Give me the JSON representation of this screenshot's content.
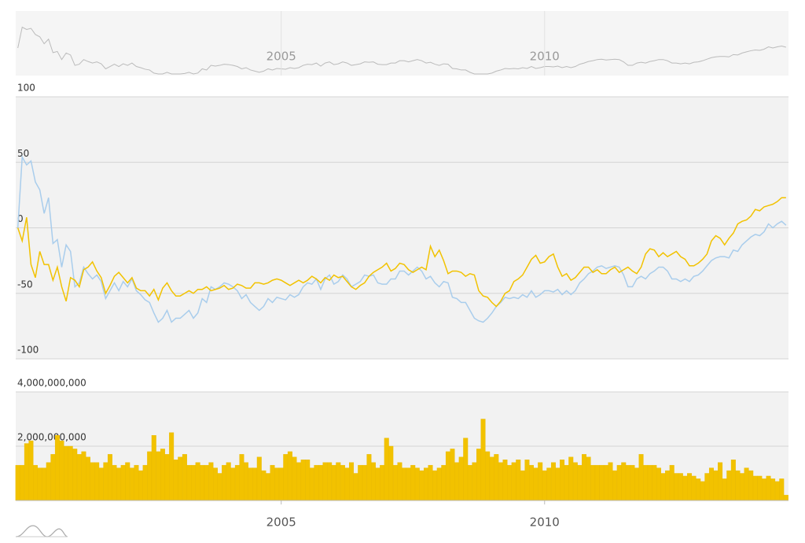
{
  "chart_data": [
    {
      "type": "line",
      "x": [
        2000,
        2000.083,
        2000.167,
        2000.25,
        2000.333,
        2000.417,
        2000.5,
        2000.583,
        2000.667,
        2000.75,
        2000.833,
        2000.917,
        2001,
        2001.083,
        2001.167,
        2001.25,
        2001.333,
        2001.417,
        2001.5,
        2001.583,
        2001.667,
        2001.75,
        2001.833,
        2001.917,
        2002,
        2002.083,
        2002.167,
        2002.25,
        2002.333,
        2002.417,
        2002.5,
        2002.583,
        2002.667,
        2002.75,
        2002.833,
        2002.917,
        2003,
        2003.083,
        2003.167,
        2003.25,
        2003.333,
        2003.417,
        2003.5,
        2003.583,
        2003.667,
        2003.75,
        2003.833,
        2003.917,
        2004,
        2004.083,
        2004.167,
        2004.25,
        2004.333,
        2004.417,
        2004.5,
        2004.583,
        2004.667,
        2004.75,
        2004.833,
        2004.917,
        2005,
        2005.083,
        2005.167,
        2005.25,
        2005.333,
        2005.417,
        2005.5,
        2005.583,
        2005.667,
        2005.75,
        2005.833,
        2005.917,
        2006,
        2006.083,
        2006.167,
        2006.25,
        2006.333,
        2006.417,
        2006.5,
        2006.583,
        2006.667,
        2006.75,
        2006.833,
        2006.917,
        2007,
        2007.083,
        2007.167,
        2007.25,
        2007.333,
        2007.417,
        2007.5,
        2007.583,
        2007.667,
        2007.75,
        2007.833,
        2007.917,
        2008,
        2008.083,
        2008.167,
        2008.25,
        2008.333,
        2008.417,
        2008.5,
        2008.583,
        2008.667,
        2008.75,
        2008.833,
        2008.917,
        2009,
        2009.083,
        2009.167,
        2009.25,
        2009.333,
        2009.417,
        2009.5,
        2009.583,
        2009.667,
        2009.75,
        2009.833,
        2009.917,
        2010,
        2010.083,
        2010.167,
        2010.25,
        2010.333,
        2010.417,
        2010.5,
        2010.583,
        2010.667,
        2010.75,
        2010.833,
        2010.917,
        2011,
        2011.083,
        2011.167,
        2011.25,
        2011.333,
        2011.417,
        2011.5,
        2011.583,
        2011.667,
        2011.75,
        2011.833,
        2011.917,
        2012,
        2012.083,
        2012.167,
        2012.25,
        2012.333,
        2012.417,
        2012.5,
        2012.583,
        2012.667,
        2012.75,
        2012.833,
        2012.917,
        2013,
        2013.083,
        2013.167,
        2013.25,
        2013.333,
        2013.417,
        2013.5,
        2013.583,
        2013.667,
        2013.75,
        2013.833,
        2013.917,
        2014,
        2014.083,
        2014.167,
        2014.25,
        2014.333,
        2014.417,
        2014.5,
        2014.583
      ],
      "series": [
        {
          "color": "#a9cdec",
          "values": [
            0,
            54,
            48,
            51,
            35,
            29,
            11,
            23,
            -12,
            -9,
            -30,
            -13,
            -18,
            -45,
            -42,
            -30,
            -35,
            -39,
            -36,
            -41,
            -54,
            -48,
            -42,
            -48,
            -41,
            -45,
            -39,
            -48,
            -51,
            -55,
            -57,
            -65,
            -72,
            -69,
            -63,
            -72,
            -69,
            -69,
            -66,
            -63,
            -69,
            -65,
            -54,
            -57,
            -45,
            -47,
            -45,
            -42,
            -43,
            -45,
            -48,
            -54,
            -51,
            -57,
            -60,
            -63,
            -60,
            -54,
            -57,
            -53,
            -54,
            -55,
            -51,
            -53,
            -51,
            -45,
            -42,
            -43,
            -39,
            -47,
            -39,
            -36,
            -43,
            -41,
            -36,
            -39,
            -45,
            -43,
            -41,
            -36,
            -37,
            -36,
            -42,
            -43,
            -43,
            -39,
            -39,
            -33,
            -33,
            -36,
            -33,
            -30,
            -33,
            -39,
            -37,
            -42,
            -45,
            -41,
            -42,
            -53,
            -54,
            -57,
            -57,
            -63,
            -69,
            -71,
            -72,
            -69,
            -65,
            -60,
            -57,
            -53,
            -54,
            -53,
            -54,
            -51,
            -53,
            -48,
            -53,
            -51,
            -48,
            -48,
            -49,
            -47,
            -51,
            -48,
            -51,
            -48,
            -42,
            -39,
            -35,
            -33,
            -30,
            -29,
            -31,
            -30,
            -29,
            -30,
            -36,
            -45,
            -45,
            -39,
            -37,
            -39,
            -35,
            -33,
            -30,
            -30,
            -33,
            -39,
            -39,
            -41,
            -39,
            -41,
            -37,
            -36,
            -33,
            -29,
            -25,
            -23,
            -22,
            -22,
            -23,
            -17,
            -18,
            -13,
            -10,
            -7,
            -5,
            -6,
            -3,
            3,
            0,
            3,
            5,
            2
          ]
        },
        {
          "color": "#f2c200",
          "values": [
            0,
            -10,
            8,
            -28,
            -38,
            -18,
            -28,
            -28,
            -40,
            -30,
            -45,
            -56,
            -38,
            -40,
            -45,
            -32,
            -30,
            -26,
            -33,
            -38,
            -50,
            -44,
            -37,
            -34,
            -38,
            -42,
            -38,
            -46,
            -48,
            -48,
            -52,
            -47,
            -55,
            -46,
            -42,
            -48,
            -52,
            -52,
            -50,
            -48,
            -50,
            -47,
            -47,
            -45,
            -48,
            -47,
            -46,
            -44,
            -47,
            -46,
            -43,
            -44,
            -46,
            -46,
            -42,
            -42,
            -43,
            -42,
            -40,
            -39,
            -40,
            -42,
            -44,
            -42,
            -40,
            -42,
            -40,
            -37,
            -39,
            -42,
            -38,
            -40,
            -36,
            -38,
            -37,
            -41,
            -45,
            -47,
            -44,
            -42,
            -37,
            -34,
            -32,
            -30,
            -27,
            -33,
            -31,
            -27,
            -28,
            -32,
            -34,
            -32,
            -30,
            -32,
            -14,
            -22,
            -17,
            -25,
            -35,
            -33,
            -33,
            -34,
            -37,
            -35,
            -36,
            -48,
            -52,
            -53,
            -57,
            -60,
            -56,
            -50,
            -48,
            -41,
            -39,
            -36,
            -30,
            -24,
            -21,
            -27,
            -26,
            -22,
            -20,
            -30,
            -37,
            -35,
            -40,
            -38,
            -34,
            -30,
            -30,
            -34,
            -32,
            -35,
            -35,
            -32,
            -30,
            -34,
            -32,
            -30,
            -33,
            -35,
            -30,
            -20,
            -16,
            -17,
            -22,
            -19,
            -22,
            -20,
            -18,
            -22,
            -24,
            -29,
            -29,
            -27,
            -24,
            -20,
            -10,
            -6,
            -8,
            -13,
            -8,
            -4,
            3,
            5,
            6,
            9,
            14,
            13,
            16,
            17,
            18,
            20,
            23,
            23
          ]
        }
      ],
      "xlim": [
        1999.96,
        2014.63
      ],
      "xticks": [
        2005,
        2010
      ],
      "ylim": [
        -100,
        100
      ],
      "yticks": [
        -100,
        -50,
        0,
        50,
        100
      ],
      "grid": true
    },
    {
      "type": "bar",
      "x": [
        2000,
        2000.083,
        2000.167,
        2000.25,
        2000.333,
        2000.417,
        2000.5,
        2000.583,
        2000.667,
        2000.75,
        2000.833,
        2000.917,
        2001,
        2001.083,
        2001.167,
        2001.25,
        2001.333,
        2001.417,
        2001.5,
        2001.583,
        2001.667,
        2001.75,
        2001.833,
        2001.917,
        2002,
        2002.083,
        2002.167,
        2002.25,
        2002.333,
        2002.417,
        2002.5,
        2002.583,
        2002.667,
        2002.75,
        2002.833,
        2002.917,
        2003,
        2003.083,
        2003.167,
        2003.25,
        2003.333,
        2003.417,
        2003.5,
        2003.583,
        2003.667,
        2003.75,
        2003.833,
        2003.917,
        2004,
        2004.083,
        2004.167,
        2004.25,
        2004.333,
        2004.417,
        2004.5,
        2004.583,
        2004.667,
        2004.75,
        2004.833,
        2004.917,
        2005,
        2005.083,
        2005.167,
        2005.25,
        2005.333,
        2005.417,
        2005.5,
        2005.583,
        2005.667,
        2005.75,
        2005.833,
        2005.917,
        2006,
        2006.083,
        2006.167,
        2006.25,
        2006.333,
        2006.417,
        2006.5,
        2006.583,
        2006.667,
        2006.75,
        2006.833,
        2006.917,
        2007,
        2007.083,
        2007.167,
        2007.25,
        2007.333,
        2007.417,
        2007.5,
        2007.583,
        2007.667,
        2007.75,
        2007.833,
        2007.917,
        2008,
        2008.083,
        2008.167,
        2008.25,
        2008.333,
        2008.417,
        2008.5,
        2008.583,
        2008.667,
        2008.75,
        2008.833,
        2008.917,
        2009,
        2009.083,
        2009.167,
        2009.25,
        2009.333,
        2009.417,
        2009.5,
        2009.583,
        2009.667,
        2009.75,
        2009.833,
        2009.917,
        2010,
        2010.083,
        2010.167,
        2010.25,
        2010.333,
        2010.417,
        2010.5,
        2010.583,
        2010.667,
        2010.75,
        2010.833,
        2010.917,
        2011,
        2011.083,
        2011.167,
        2011.25,
        2011.333,
        2011.417,
        2011.5,
        2011.583,
        2011.667,
        2011.75,
        2011.833,
        2011.917,
        2012,
        2012.083,
        2012.167,
        2012.25,
        2012.333,
        2012.417,
        2012.5,
        2012.583,
        2012.667,
        2012.75,
        2012.833,
        2012.917,
        2013,
        2013.083,
        2013.167,
        2013.25,
        2013.333,
        2013.417,
        2013.5,
        2013.583,
        2013.667,
        2013.75,
        2013.833,
        2013.917,
        2014,
        2014.083,
        2014.167,
        2014.25,
        2014.333,
        2014.417,
        2014.5,
        2014.583
      ],
      "values": [
        1300000000.0,
        1300000000.0,
        2100000000.0,
        2200000000.0,
        1300000000.0,
        1200000000.0,
        1200000000.0,
        1400000000.0,
        1700000000.0,
        2400000000.0,
        2200000000.0,
        2000000000.0,
        2000000000.0,
        1900000000.0,
        1700000000.0,
        1800000000.0,
        1600000000.0,
        1400000000.0,
        1400000000.0,
        1200000000.0,
        1400000000.0,
        1700000000.0,
        1300000000.0,
        1200000000.0,
        1300000000.0,
        1400000000.0,
        1200000000.0,
        1300000000.0,
        1100000000.0,
        1300000000.0,
        1800000000.0,
        2400000000.0,
        1800000000.0,
        1900000000.0,
        1700000000.0,
        2500000000.0,
        1500000000.0,
        1600000000.0,
        1700000000.0,
        1300000000.0,
        1300000000.0,
        1400000000.0,
        1300000000.0,
        1300000000.0,
        1400000000.0,
        1200000000.0,
        1000000000.0,
        1300000000.0,
        1400000000.0,
        1200000000.0,
        1300000000.0,
        1700000000.0,
        1400000000.0,
        1200000000.0,
        1200000000.0,
        1600000000.0,
        1100000000.0,
        1000000000.0,
        1300000000.0,
        1200000000.0,
        1200000000.0,
        1700000000.0,
        1800000000.0,
        1600000000.0,
        1400000000.0,
        1500000000.0,
        1500000000.0,
        1200000000.0,
        1300000000.0,
        1300000000.0,
        1400000000.0,
        1400000000.0,
        1300000000.0,
        1400000000.0,
        1300000000.0,
        1200000000.0,
        1400000000.0,
        1000000000.0,
        1300000000.0,
        1300000000.0,
        1700000000.0,
        1400000000.0,
        1200000000.0,
        1300000000.0,
        2300000000.0,
        2000000000.0,
        1300000000.0,
        1400000000.0,
        1200000000.0,
        1200000000.0,
        1300000000.0,
        1200000000.0,
        1100000000.0,
        1200000000.0,
        1300000000.0,
        1100000000.0,
        1200000000.0,
        1300000000.0,
        1800000000.0,
        1900000000.0,
        1400000000.0,
        1600000000.0,
        2300000000.0,
        1300000000.0,
        1400000000.0,
        1900000000.0,
        3000000000.0,
        1800000000.0,
        1600000000.0,
        1700000000.0,
        1400000000.0,
        1500000000.0,
        1300000000.0,
        1400000000.0,
        1500000000.0,
        1100000000.0,
        1500000000.0,
        1300000000.0,
        1200000000.0,
        1400000000.0,
        1100000000.0,
        1200000000.0,
        1400000000.0,
        1200000000.0,
        1500000000.0,
        1300000000.0,
        1600000000.0,
        1400000000.0,
        1300000000.0,
        1700000000.0,
        1600000000.0,
        1300000000.0,
        1300000000.0,
        1300000000.0,
        1300000000.0,
        1400000000.0,
        1100000000.0,
        1300000000.0,
        1400000000.0,
        1300000000.0,
        1300000000.0,
        1200000000.0,
        1700000000.0,
        1300000000.0,
        1300000000.0,
        1300000000.0,
        1200000000.0,
        1000000000.0,
        1100000000.0,
        1300000000.0,
        1000000000.0,
        1000000000.0,
        900000000.0,
        1000000000.0,
        900000000.0,
        800000000.0,
        700000000.0,
        1000000000.0,
        1200000000.0,
        1100000000.0,
        1400000000.0,
        800000000.0,
        1100000000.0,
        1500000000.0,
        1100000000.0,
        1000000000.0,
        1200000000.0,
        1100000000.0,
        900000000.0,
        900000000.0,
        800000000.0,
        900000000.0,
        800000000.0,
        700000000.0,
        800000000.0,
        200000000.0
      ],
      "color": "#f2c200",
      "xlim": [
        1999.96,
        2014.63
      ],
      "xticks": [
        2005,
        2010
      ],
      "ylim": [
        0,
        4000000000
      ],
      "yticks": [
        0,
        {
          "value": 2000000000,
          "label": "2,000,000,000"
        },
        {
          "value": 4000000000,
          "label": "4,000,000,000"
        }
      ],
      "grid": true
    }
  ]
}
